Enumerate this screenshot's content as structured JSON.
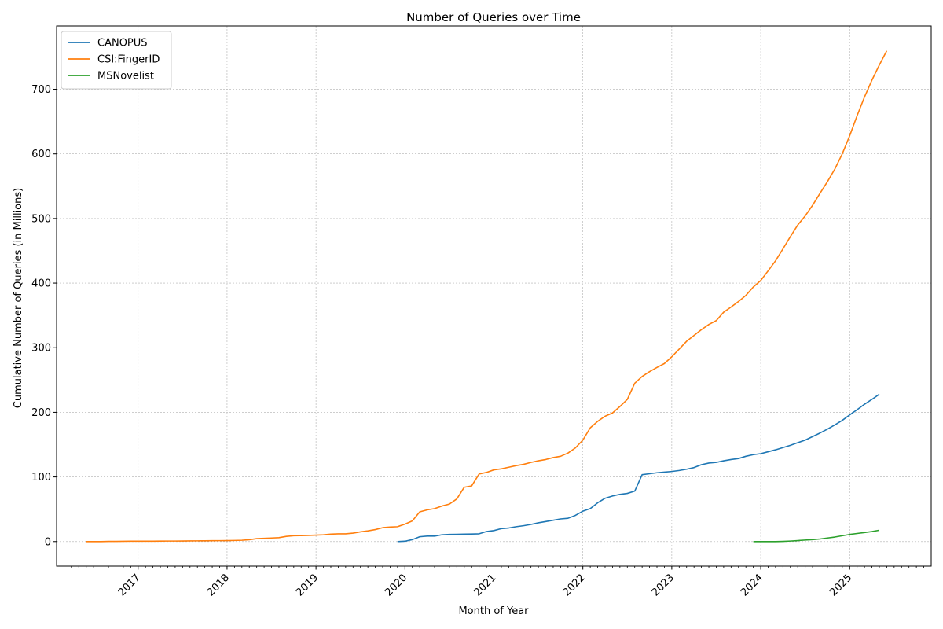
{
  "chart_data": {
    "type": "line",
    "title": "Number of Queries over Time",
    "xlabel": "Month of Year",
    "ylabel": "Cumulative Number of Queries (in Millions)",
    "x_tick_labels": [
      "2017",
      "2018",
      "2019",
      "2020",
      "2021",
      "2022",
      "2023",
      "2024",
      "2025"
    ],
    "y_ticks": [
      0,
      100,
      200,
      300,
      400,
      500,
      600,
      700
    ],
    "xlim": [
      "2016-02-01",
      "2025-12-01"
    ],
    "ylim": [
      -38,
      798
    ],
    "grid": true,
    "legend_position": "top-left",
    "series": [
      {
        "name": "CANOPUS",
        "color": "#1f77b4",
        "points": [
          [
            "2019-12",
            0
          ],
          [
            "2020-01",
            0.5
          ],
          [
            "2020-02",
            3
          ],
          [
            "2020-03",
            7.5
          ],
          [
            "2020-04",
            8.5
          ],
          [
            "2020-05",
            8.5
          ],
          [
            "2020-06",
            10.5
          ],
          [
            "2020-07",
            11
          ],
          [
            "2020-08",
            11.3
          ],
          [
            "2020-09",
            11.5
          ],
          [
            "2020-10",
            11.7
          ],
          [
            "2020-11",
            12
          ],
          [
            "2020-12",
            15.5
          ],
          [
            "2021-01",
            17
          ],
          [
            "2021-02",
            20
          ],
          [
            "2021-03",
            21
          ],
          [
            "2021-04",
            23
          ],
          [
            "2021-05",
            24.5
          ],
          [
            "2021-06",
            26.5
          ],
          [
            "2021-07",
            29
          ],
          [
            "2021-08",
            31
          ],
          [
            "2021-09",
            33
          ],
          [
            "2021-10",
            35
          ],
          [
            "2021-11",
            36
          ],
          [
            "2021-12",
            40.5
          ],
          [
            "2022-01",
            47
          ],
          [
            "2022-02",
            51
          ],
          [
            "2022-03",
            60
          ],
          [
            "2022-04",
            67
          ],
          [
            "2022-05",
            70.5
          ],
          [
            "2022-06",
            73
          ],
          [
            "2022-07",
            74.5
          ],
          [
            "2022-08",
            78
          ],
          [
            "2022-09",
            103.5
          ],
          [
            "2022-10",
            105
          ],
          [
            "2022-11",
            106.5
          ],
          [
            "2022-12",
            107.5
          ],
          [
            "2023-01",
            108.5
          ],
          [
            "2023-02",
            110
          ],
          [
            "2023-03",
            112
          ],
          [
            "2023-04",
            114.5
          ],
          [
            "2023-05",
            119
          ],
          [
            "2023-06",
            121.5
          ],
          [
            "2023-07",
            122.5
          ],
          [
            "2023-08",
            125
          ],
          [
            "2023-09",
            127
          ],
          [
            "2023-10",
            128.5
          ],
          [
            "2023-11",
            132
          ],
          [
            "2023-12",
            134.5
          ],
          [
            "2024-01",
            136
          ],
          [
            "2024-02",
            139
          ],
          [
            "2024-03",
            142
          ],
          [
            "2024-04",
            145.5
          ],
          [
            "2024-05",
            149
          ],
          [
            "2024-06",
            153
          ],
          [
            "2024-07",
            157
          ],
          [
            "2024-08",
            162.5
          ],
          [
            "2024-09",
            168
          ],
          [
            "2024-10",
            174
          ],
          [
            "2024-11",
            180.5
          ],
          [
            "2024-12",
            187.5
          ],
          [
            "2025-01",
            196
          ],
          [
            "2025-02",
            204
          ],
          [
            "2025-03",
            212.5
          ],
          [
            "2025-04",
            220
          ],
          [
            "2025-05",
            228
          ]
        ]
      },
      {
        "name": "CSI:FingerID",
        "color": "#ff7f0e",
        "points": [
          [
            "2016-06",
            0
          ],
          [
            "2016-07",
            0
          ],
          [
            "2016-08",
            0
          ],
          [
            "2016-09",
            0.2
          ],
          [
            "2016-10",
            0.3
          ],
          [
            "2016-11",
            0.4
          ],
          [
            "2016-12",
            0.5
          ],
          [
            "2017-01",
            0.5
          ],
          [
            "2017-02",
            0.6
          ],
          [
            "2017-03",
            0.6
          ],
          [
            "2017-04",
            0.7
          ],
          [
            "2017-05",
            0.8
          ],
          [
            "2017-06",
            0.8
          ],
          [
            "2017-07",
            0.9
          ],
          [
            "2017-08",
            1
          ],
          [
            "2017-09",
            1.1
          ],
          [
            "2017-10",
            1.2
          ],
          [
            "2017-11",
            1.3
          ],
          [
            "2017-12",
            1.4
          ],
          [
            "2018-01",
            1.5
          ],
          [
            "2018-02",
            1.7
          ],
          [
            "2018-03",
            2
          ],
          [
            "2018-04",
            2.8
          ],
          [
            "2018-05",
            4.5
          ],
          [
            "2018-06",
            5
          ],
          [
            "2018-07",
            5.5
          ],
          [
            "2018-08",
            6
          ],
          [
            "2018-09",
            8
          ],
          [
            "2018-10",
            9
          ],
          [
            "2018-11",
            9.2
          ],
          [
            "2018-12",
            9.5
          ],
          [
            "2019-01",
            10
          ],
          [
            "2019-02",
            10.5
          ],
          [
            "2019-03",
            11.5
          ],
          [
            "2019-04",
            12
          ],
          [
            "2019-05",
            12
          ],
          [
            "2019-06",
            13
          ],
          [
            "2019-07",
            15
          ],
          [
            "2019-08",
            16.5
          ],
          [
            "2019-09",
            18.5
          ],
          [
            "2019-10",
            21.5
          ],
          [
            "2019-11",
            22.5
          ],
          [
            "2019-12",
            23
          ],
          [
            "2020-01",
            27
          ],
          [
            "2020-02",
            32
          ],
          [
            "2020-03",
            46
          ],
          [
            "2020-04",
            49
          ],
          [
            "2020-05",
            51
          ],
          [
            "2020-06",
            55
          ],
          [
            "2020-07",
            58
          ],
          [
            "2020-08",
            66
          ],
          [
            "2020-09",
            84
          ],
          [
            "2020-10",
            86
          ],
          [
            "2020-11",
            104.5
          ],
          [
            "2020-12",
            107
          ],
          [
            "2021-01",
            111
          ],
          [
            "2021-02",
            112.5
          ],
          [
            "2021-03",
            115
          ],
          [
            "2021-04",
            117.5
          ],
          [
            "2021-05",
            119.5
          ],
          [
            "2021-06",
            122.5
          ],
          [
            "2021-07",
            125
          ],
          [
            "2021-08",
            127
          ],
          [
            "2021-09",
            130
          ],
          [
            "2021-10",
            132
          ],
          [
            "2021-11",
            137
          ],
          [
            "2021-12",
            145
          ],
          [
            "2022-01",
            157
          ],
          [
            "2022-02",
            176
          ],
          [
            "2022-03",
            186
          ],
          [
            "2022-04",
            194
          ],
          [
            "2022-05",
            199
          ],
          [
            "2022-06",
            209
          ],
          [
            "2022-07",
            220
          ],
          [
            "2022-08",
            245
          ],
          [
            "2022-09",
            255.5
          ],
          [
            "2022-10",
            263
          ],
          [
            "2022-11",
            269.5
          ],
          [
            "2022-12",
            275.5
          ],
          [
            "2023-01",
            286
          ],
          [
            "2023-02",
            298
          ],
          [
            "2023-03",
            310
          ],
          [
            "2023-04",
            319
          ],
          [
            "2023-05",
            328
          ],
          [
            "2023-06",
            336
          ],
          [
            "2023-07",
            342
          ],
          [
            "2023-08",
            355
          ],
          [
            "2023-09",
            363
          ],
          [
            "2023-10",
            371.5
          ],
          [
            "2023-11",
            381
          ],
          [
            "2023-12",
            394
          ],
          [
            "2024-01",
            404
          ],
          [
            "2024-02",
            419
          ],
          [
            "2024-03",
            434.5
          ],
          [
            "2024-04",
            453
          ],
          [
            "2024-05",
            472
          ],
          [
            "2024-06",
            490
          ],
          [
            "2024-07",
            504
          ],
          [
            "2024-08",
            520.5
          ],
          [
            "2024-09",
            539
          ],
          [
            "2024-10",
            557
          ],
          [
            "2024-11",
            576.5
          ],
          [
            "2024-12",
            600
          ],
          [
            "2025-01",
            628
          ],
          [
            "2025-02",
            659
          ],
          [
            "2025-03",
            688
          ],
          [
            "2025-04",
            714
          ],
          [
            "2025-05",
            737.5
          ],
          [
            "2025-06",
            759.5
          ]
        ]
      },
      {
        "name": "MSNovelist",
        "color": "#2ca02c",
        "points": [
          [
            "2023-12",
            0
          ],
          [
            "2024-01",
            0
          ],
          [
            "2024-02",
            0
          ],
          [
            "2024-03",
            0
          ],
          [
            "2024-04",
            0.3
          ],
          [
            "2024-05",
            0.8
          ],
          [
            "2024-06",
            1.5
          ],
          [
            "2024-07",
            2.3
          ],
          [
            "2024-08",
            3
          ],
          [
            "2024-09",
            4
          ],
          [
            "2024-10",
            5.5
          ],
          [
            "2024-11",
            7
          ],
          [
            "2024-12",
            9
          ],
          [
            "2025-01",
            11
          ],
          [
            "2025-02",
            12.5
          ],
          [
            "2025-03",
            14
          ],
          [
            "2025-04",
            15.5
          ],
          [
            "2025-05",
            17.5
          ]
        ]
      }
    ]
  }
}
